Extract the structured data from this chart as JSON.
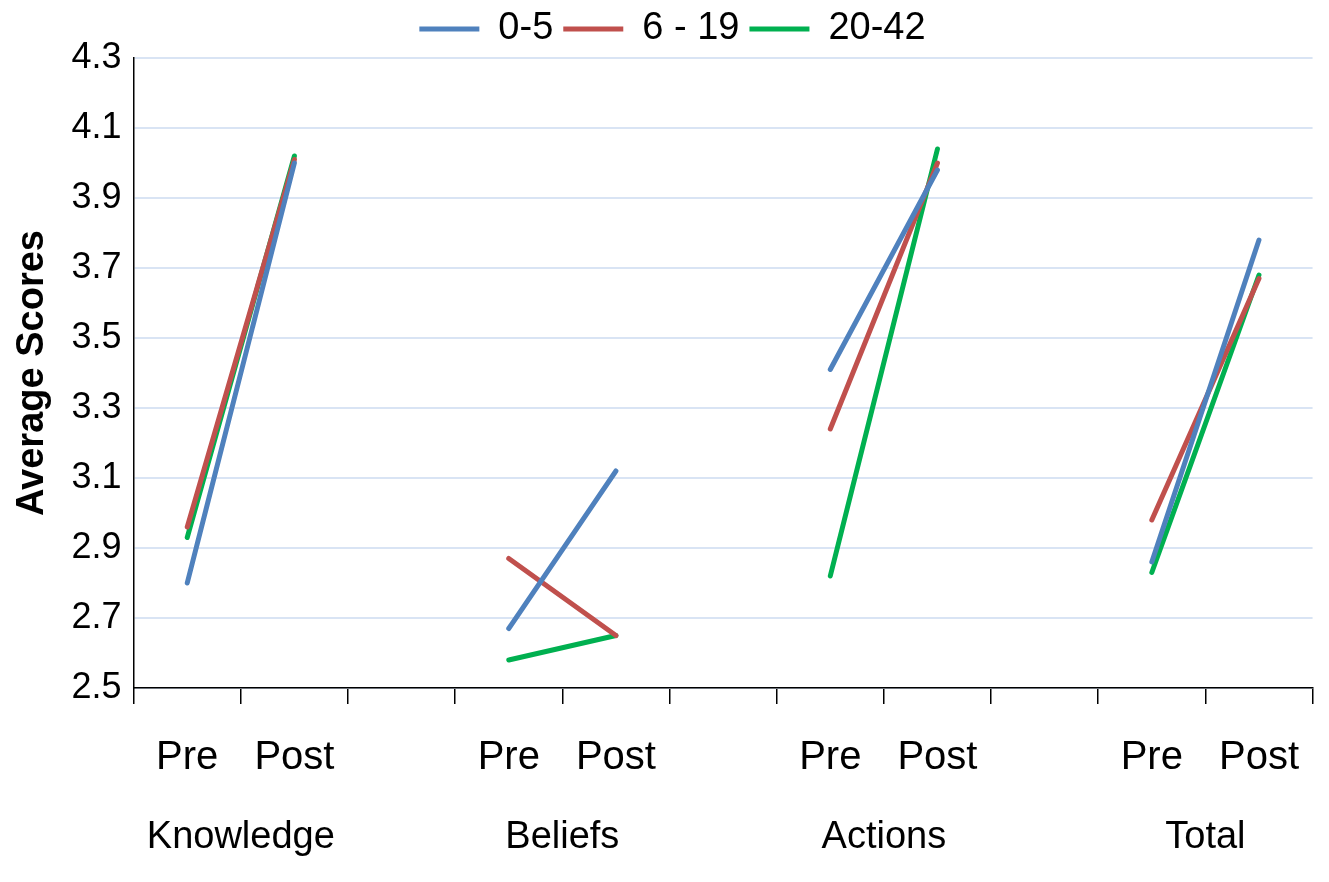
{
  "chart_data": {
    "type": "line",
    "ylabel": "Average Scores",
    "categories": [
      "Pre",
      "Post",
      null,
      "Pre",
      "Post",
      null,
      "Pre",
      "Post",
      null,
      "Pre",
      "Post"
    ],
    "series": [
      {
        "name": "0-5",
        "color": "#4f81bd",
        "values": [
          2.8,
          4.0,
          null,
          2.67,
          3.12,
          null,
          3.41,
          3.98,
          null,
          2.86,
          3.78
        ]
      },
      {
        "name": "6 - 19",
        "color": "#c0504d",
        "values": [
          2.96,
          4.01,
          null,
          2.87,
          2.65,
          null,
          3.24,
          4.0,
          null,
          2.98,
          3.67
        ]
      },
      {
        "name": "20-42",
        "color": "#00b050",
        "values": [
          2.93,
          4.02,
          null,
          2.58,
          2.65,
          null,
          2.82,
          4.04,
          null,
          2.83,
          3.68
        ]
      }
    ],
    "annotations": [
      "Knowledge",
      "Beliefs",
      "Actions",
      "Total"
    ],
    "ylim": [
      2.5,
      4.3
    ],
    "yticks": [
      2.5,
      2.7,
      2.9,
      3.1,
      3.3,
      3.5,
      3.7,
      3.9,
      4.1,
      4.3
    ],
    "grid": "y",
    "legend": "top",
    "marker": "none",
    "line_style": "solid"
  }
}
